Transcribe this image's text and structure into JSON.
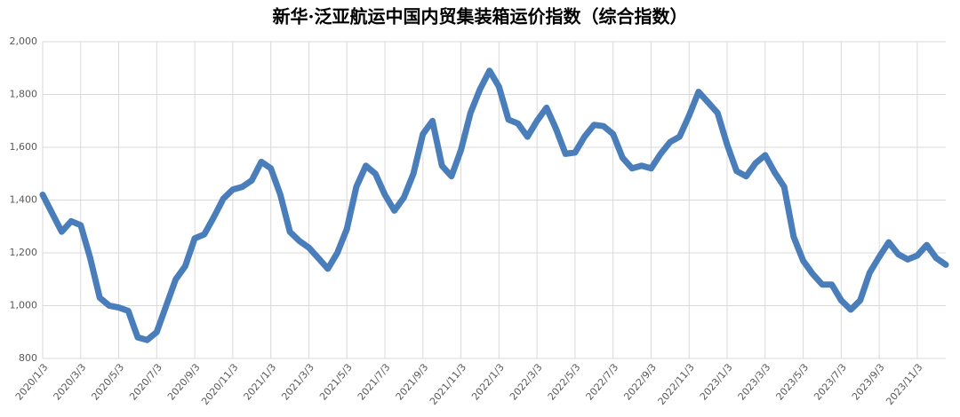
{
  "chart_data": {
    "type": "line",
    "title": "新华·泛亚航运中国内贸集装箱运价指数（综合指数）",
    "categories": [
      "2020/1/3",
      null,
      null,
      null,
      "2020/3/3",
      null,
      null,
      null,
      "2020/5/3",
      null,
      null,
      null,
      "2020/7/3",
      null,
      null,
      null,
      "2020/9/3",
      null,
      null,
      null,
      "2020/11/3",
      null,
      null,
      null,
      "2021/1/3",
      null,
      null,
      null,
      "2021/3/3",
      null,
      null,
      null,
      "2021/5/3",
      null,
      null,
      null,
      "2021/7/3",
      null,
      null,
      null,
      "2021/9/3",
      null,
      null,
      null,
      "2021/11/3",
      null,
      null,
      null,
      "2022/1/3",
      null,
      null,
      null,
      "2022/3/3",
      null,
      null,
      null,
      "2022/5/3",
      null,
      null,
      null,
      "2022/7/3",
      null,
      null,
      null,
      "2022/9/3",
      null,
      null,
      null,
      "2022/11/3",
      null,
      null,
      null,
      "2023/1/3",
      null,
      null,
      null,
      "2023/3/3",
      null,
      null,
      null,
      "2023/5/3",
      null,
      null,
      null,
      "2023/7/3",
      null,
      null,
      null,
      "2023/9/3",
      null,
      null,
      null,
      "2023/11/3",
      null,
      null,
      null
    ],
    "series": [
      {
        "name": "综合指数",
        "color": "#4a7ebb",
        "values": [
          1420,
          1350,
          1280,
          1320,
          1305,
          1180,
          1030,
          1000,
          993,
          980,
          880,
          870,
          900,
          1000,
          1100,
          1150,
          1255,
          1270,
          1335,
          1405,
          1440,
          1450,
          1475,
          1545,
          1520,
          1420,
          1280,
          1245,
          1220,
          1180,
          1140,
          1200,
          1290,
          1450,
          1530,
          1500,
          1420,
          1360,
          1410,
          1500,
          1650,
          1700,
          1530,
          1490,
          1590,
          1730,
          1820,
          1890,
          1830,
          1705,
          1690,
          1640,
          1700,
          1750,
          1670,
          1575,
          1580,
          1640,
          1685,
          1680,
          1650,
          1560,
          1520,
          1530,
          1520,
          1575,
          1620,
          1640,
          1720,
          1810,
          1770,
          1730,
          1610,
          1510,
          1490,
          1540,
          1570,
          1505,
          1450,
          1260,
          1170,
          1120,
          1080,
          1080,
          1020,
          985,
          1020,
          1125,
          1185,
          1240,
          1195,
          1175,
          1190,
          1230,
          1180,
          1155
        ]
      }
    ],
    "ylim": [
      800,
      2000
    ],
    "yticks": [
      800,
      {
        "value": 1000,
        "label": "1,000"
      },
      {
        "value": 1200,
        "label": "1,200"
      },
      {
        "value": 1400,
        "label": "1,400"
      },
      {
        "value": 1600,
        "label": "1,600"
      },
      {
        "value": 1800,
        "label": "1,800"
      },
      {
        "value": 2000,
        "label": "2,000"
      }
    ],
    "grid": true
  }
}
